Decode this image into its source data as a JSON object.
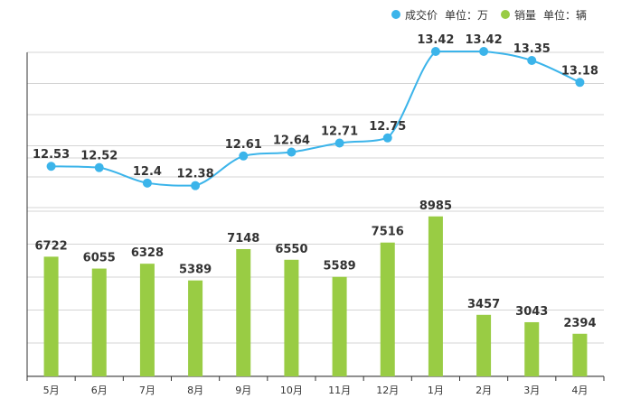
{
  "legend": {
    "price": {
      "label": "成交价",
      "unit": "单位：万"
    },
    "sales": {
      "label": "销量",
      "unit": "单位：辆"
    }
  },
  "chart_data": {
    "type": "bar",
    "categories": [
      "5月",
      "6月",
      "7月",
      "8月",
      "9月",
      "10月",
      "11月",
      "12月",
      "1月",
      "2月",
      "3月",
      "4月"
    ],
    "series": [
      {
        "name": "成交价",
        "type": "line",
        "unit": "单位：万",
        "color": "#3bb4ea",
        "values": [
          12.53,
          12.52,
          12.4,
          12.38,
          12.61,
          12.64,
          12.71,
          12.75,
          13.42,
          13.42,
          13.35,
          13.18
        ]
      },
      {
        "name": "销量",
        "type": "bar",
        "unit": "单位：辆",
        "color": "#99cc44",
        "values": [
          6722,
          6055,
          6328,
          5389,
          7148,
          6550,
          5589,
          7516,
          8985,
          3457,
          3043,
          2394
        ]
      }
    ],
    "grid": true,
    "legend_position": "top-right"
  }
}
